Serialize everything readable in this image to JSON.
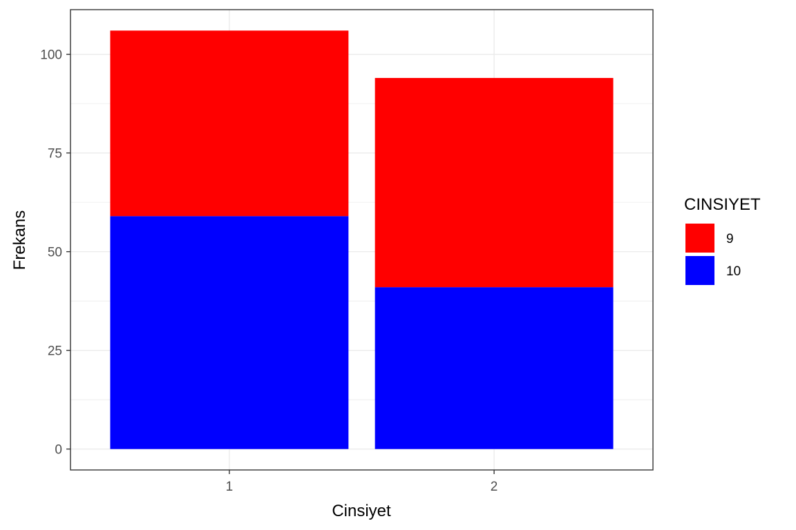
{
  "chart_data": {
    "type": "bar",
    "stacked": true,
    "categories": [
      "1",
      "2"
    ],
    "series": [
      {
        "name": "10",
        "color": "#0000ff",
        "values": [
          59,
          41
        ]
      },
      {
        "name": "9",
        "color": "#ff0000",
        "values": [
          47,
          53
        ]
      }
    ],
    "xlabel": "Cinsiyet",
    "ylabel": "Frekans",
    "ylim": [
      -5.3,
      111.3
    ],
    "yticks": [
      0,
      25,
      50,
      75,
      100
    ],
    "grid": true,
    "legend": {
      "title": "CINSIYET",
      "placement": "right",
      "entries": [
        {
          "label": "9",
          "color": "#ff0000"
        },
        {
          "label": "10",
          "color": "#0000ff"
        }
      ]
    }
  }
}
